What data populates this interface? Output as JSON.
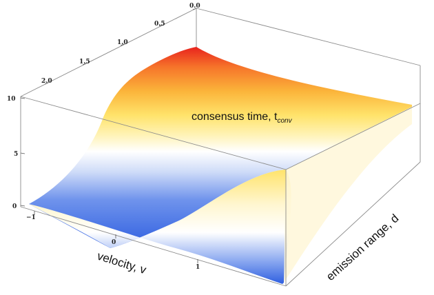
{
  "chart_data": {
    "type": "surface3d",
    "surface_label": "consensus time, t",
    "surface_label_sub": "conv",
    "x_axis": {
      "label": "velocity, v",
      "ticks": [
        "−1",
        "0",
        "1"
      ],
      "range": [
        -1,
        2
      ]
    },
    "y_axis": {
      "label": "emission range, d",
      "ticks": [
        "0.0",
        "0.5",
        "1.0",
        "1.5",
        "2.0"
      ],
      "range": [
        0,
        2.2
      ]
    },
    "z_axis": {
      "ticks": [
        "0",
        "5",
        "10"
      ],
      "range": [
        0,
        10
      ]
    },
    "colors": {
      "low": "#2f5fe0",
      "mid": "#ffffff",
      "high_yellow": "#ffe96a",
      "peak": "#e8231d"
    }
  }
}
